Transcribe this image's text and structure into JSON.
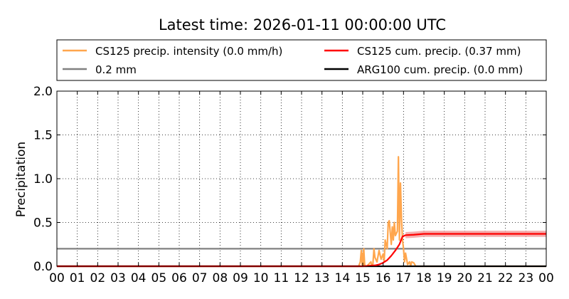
{
  "chart_data": {
    "type": "line",
    "title": "Latest time: 2026-01-11 00:00:00 UTC",
    "xlabel": "",
    "ylabel": "Precipitation",
    "xlim": [
      0,
      24
    ],
    "ylim": [
      0,
      2.0
    ],
    "x_tick_labels": [
      "00",
      "01",
      "02",
      "03",
      "04",
      "05",
      "06",
      "07",
      "08",
      "09",
      "10",
      "11",
      "12",
      "13",
      "14",
      "15",
      "16",
      "17",
      "18",
      "19",
      "20",
      "21",
      "22",
      "23",
      "00"
    ],
    "y_ticks": [
      0.0,
      0.5,
      1.0,
      1.5,
      2.0
    ],
    "y_tick_labels": [
      "0.0",
      "0.5",
      "1.0",
      "1.5",
      "2.0"
    ],
    "grid": true,
    "legend_placement": "top",
    "legend": [
      {
        "label": "CS125 precip. intensity (0.0 mm/h)",
        "color": "#ffa64d"
      },
      {
        "label": "CS125 cum. precip. (0.37 mm)",
        "color": "#ff0000"
      },
      {
        "label": "0.2 mm",
        "color": "#808080"
      },
      {
        "label": "ARG100 cum. precip. (0.0 mm)",
        "color": "#000000"
      }
    ],
    "series": [
      {
        "name": "CS125 precip. intensity (0.0 mm/h)",
        "color": "#ffa64d",
        "x": [
          0,
          14.8,
          14.88,
          14.93,
          14.97,
          15.0,
          15.02,
          15.05,
          15.1,
          15.2,
          15.4,
          15.45,
          15.5,
          15.55,
          15.6,
          15.7,
          15.8,
          15.9,
          16.0,
          16.05,
          16.1,
          16.2,
          16.25,
          16.3,
          16.4,
          16.45,
          16.5,
          16.55,
          16.6,
          16.7,
          16.75,
          16.8,
          16.85,
          16.9,
          16.95,
          17.0,
          17.05,
          17.1,
          17.2,
          17.3,
          17.35,
          17.4,
          17.5,
          17.6,
          17.7,
          24
        ],
        "y": [
          0,
          0,
          0.05,
          0.18,
          0.02,
          0.15,
          0.0,
          0.2,
          0.0,
          0.0,
          0.05,
          0.0,
          0.03,
          0.2,
          0.1,
          0.05,
          0.18,
          0.08,
          0.14,
          0.05,
          0.3,
          0.2,
          0.5,
          0.52,
          0.25,
          0.45,
          0.3,
          0.5,
          0.35,
          0.4,
          1.25,
          0.3,
          0.95,
          0.55,
          0.3,
          0.2,
          0.05,
          0.15,
          0.02,
          0.05,
          0.0,
          0.05,
          0.04,
          0.0,
          0.0,
          0.0
        ]
      },
      {
        "name": "CS125 cum. precip. (0.37 mm)",
        "color": "#ff0000",
        "band_color": "#f2a0a0",
        "band_halfwidth": 0.035,
        "x": [
          0,
          15.0,
          15.3,
          15.6,
          15.8,
          16.0,
          16.2,
          16.4,
          16.6,
          16.8,
          16.95,
          17.1,
          17.5,
          18.0,
          24
        ],
        "y": [
          0,
          0,
          0.005,
          0.01,
          0.02,
          0.04,
          0.07,
          0.12,
          0.18,
          0.25,
          0.34,
          0.355,
          0.36,
          0.37,
          0.37
        ]
      },
      {
        "name": "0.2 mm",
        "color": "#808080",
        "x": [
          0,
          24
        ],
        "y": [
          0.2,
          0.2
        ]
      },
      {
        "name": "ARG100 cum. precip. (0.0 mm)",
        "color": "#000000",
        "x": [
          0,
          24
        ],
        "y": [
          0.0,
          0.0
        ]
      }
    ]
  }
}
